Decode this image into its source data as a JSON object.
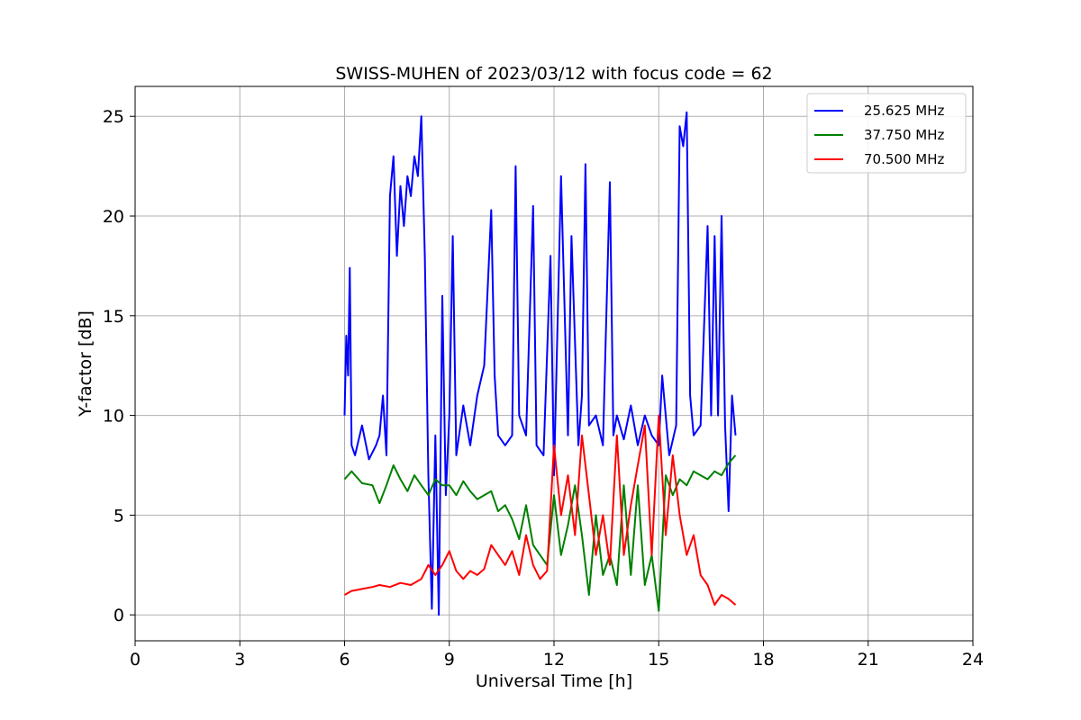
{
  "chart_data": {
    "type": "line",
    "title": "SWISS-MUHEN of 2023/03/12 with focus code = 62",
    "xlabel": "Universal Time [h]",
    "ylabel": "Y-factor [dB]",
    "xlim": [
      0,
      24
    ],
    "ylim": [
      -1.3,
      26.5
    ],
    "xticks": [
      0,
      3,
      6,
      9,
      12,
      15,
      18,
      21,
      24
    ],
    "yticks": [
      0,
      5,
      10,
      15,
      20,
      25
    ],
    "grid": true,
    "legend_position": "top-right",
    "series": [
      {
        "name": "25.625 MHz",
        "color": "#0000ff",
        "x": [
          6.0,
          6.05,
          6.1,
          6.15,
          6.2,
          6.3,
          6.5,
          6.7,
          6.9,
          7.0,
          7.1,
          7.2,
          7.3,
          7.4,
          7.5,
          7.6,
          7.7,
          7.8,
          7.9,
          8.0,
          8.1,
          8.2,
          8.3,
          8.4,
          8.5,
          8.6,
          8.7,
          8.8,
          8.9,
          9.0,
          9.1,
          9.2,
          9.4,
          9.6,
          9.8,
          10.0,
          10.2,
          10.3,
          10.4,
          10.6,
          10.8,
          10.9,
          11.0,
          11.2,
          11.4,
          11.5,
          11.7,
          11.9,
          12.0,
          12.2,
          12.4,
          12.5,
          12.7,
          12.8,
          12.9,
          13.0,
          13.2,
          13.4,
          13.6,
          13.7,
          13.8,
          14.0,
          14.2,
          14.4,
          14.6,
          14.8,
          15.0,
          15.1,
          15.3,
          15.5,
          15.6,
          15.7,
          15.8,
          15.9,
          16.0,
          16.2,
          16.4,
          16.5,
          16.6,
          16.7,
          16.8,
          16.9,
          17.0,
          17.1,
          17.2
        ],
        "y": [
          10.0,
          14.0,
          12.0,
          17.4,
          8.5,
          8.0,
          9.5,
          7.8,
          8.5,
          9.0,
          11.0,
          8.0,
          21.0,
          23.0,
          18.0,
          21.5,
          19.5,
          22.0,
          21.0,
          23.0,
          22.0,
          25.0,
          18.0,
          7.0,
          0.3,
          9.0,
          0.0,
          16.0,
          6.0,
          10.0,
          19.0,
          8.0,
          10.5,
          8.5,
          11.0,
          12.5,
          20.3,
          12.0,
          9.0,
          8.5,
          9.0,
          22.5,
          10.0,
          9.0,
          20.5,
          8.5,
          8.0,
          18.0,
          7.0,
          22.0,
          9.0,
          19.0,
          8.5,
          11.0,
          22.6,
          9.5,
          10.0,
          8.5,
          21.7,
          9.0,
          10.0,
          8.8,
          10.5,
          8.5,
          10.0,
          9.0,
          8.5,
          12.0,
          8.0,
          9.5,
          24.5,
          23.5,
          25.2,
          11.0,
          9.0,
          9.5,
          19.5,
          10.0,
          19.0,
          10.0,
          20.0,
          9.5,
          5.2,
          11.0,
          9.0
        ]
      },
      {
        "name": "37.750 MHz",
        "color": "#008000",
        "x": [
          6.0,
          6.2,
          6.5,
          6.8,
          7.0,
          7.2,
          7.4,
          7.6,
          7.8,
          8.0,
          8.2,
          8.4,
          8.6,
          8.8,
          9.0,
          9.2,
          9.4,
          9.6,
          9.8,
          10.0,
          10.2,
          10.4,
          10.6,
          10.8,
          11.0,
          11.2,
          11.4,
          11.6,
          11.8,
          12.0,
          12.2,
          12.4,
          12.6,
          12.8,
          13.0,
          13.2,
          13.4,
          13.6,
          13.8,
          14.0,
          14.2,
          14.4,
          14.6,
          14.8,
          15.0,
          15.2,
          15.4,
          15.6,
          15.8,
          16.0,
          16.2,
          16.4,
          16.6,
          16.8,
          17.0,
          17.2
        ],
        "y": [
          6.8,
          7.2,
          6.6,
          6.5,
          5.6,
          6.5,
          7.5,
          6.8,
          6.2,
          7.0,
          6.5,
          6.0,
          6.8,
          6.5,
          6.5,
          6.0,
          6.7,
          6.2,
          5.8,
          6.0,
          6.2,
          5.2,
          5.5,
          4.8,
          3.8,
          5.5,
          3.5,
          3.0,
          2.5,
          6.0,
          3.0,
          4.5,
          6.5,
          4.0,
          1.0,
          5.0,
          2.0,
          3.0,
          1.5,
          6.5,
          2.0,
          6.5,
          1.5,
          3.0,
          0.2,
          7.0,
          6.0,
          6.8,
          6.5,
          7.2,
          7.0,
          6.8,
          7.2,
          7.0,
          7.6,
          8.0
        ]
      },
      {
        "name": "70.500 MHz",
        "color": "#ff0000",
        "x": [
          6.0,
          6.2,
          6.5,
          6.8,
          7.0,
          7.3,
          7.6,
          7.9,
          8.2,
          8.4,
          8.6,
          8.8,
          9.0,
          9.2,
          9.4,
          9.6,
          9.8,
          10.0,
          10.2,
          10.4,
          10.6,
          10.8,
          11.0,
          11.2,
          11.4,
          11.6,
          11.8,
          12.0,
          12.2,
          12.4,
          12.6,
          12.8,
          13.0,
          13.2,
          13.4,
          13.6,
          13.8,
          14.0,
          14.2,
          14.4,
          14.6,
          14.8,
          15.0,
          15.2,
          15.4,
          15.6,
          15.8,
          16.0,
          16.2,
          16.4,
          16.6,
          16.8,
          17.0,
          17.2
        ],
        "y": [
          1.0,
          1.2,
          1.3,
          1.4,
          1.5,
          1.4,
          1.6,
          1.5,
          1.8,
          2.5,
          2.0,
          2.5,
          3.2,
          2.2,
          1.8,
          2.2,
          2.0,
          2.3,
          3.5,
          3.0,
          2.5,
          3.2,
          2.0,
          4.0,
          2.5,
          1.8,
          2.2,
          8.5,
          5.0,
          7.0,
          4.0,
          9.0,
          6.0,
          3.0,
          5.0,
          2.5,
          9.0,
          3.0,
          5.5,
          7.5,
          9.5,
          3.0,
          10.0,
          4.0,
          8.0,
          5.0,
          3.0,
          4.0,
          2.0,
          1.5,
          0.5,
          1.0,
          0.8,
          0.5
        ]
      }
    ]
  }
}
